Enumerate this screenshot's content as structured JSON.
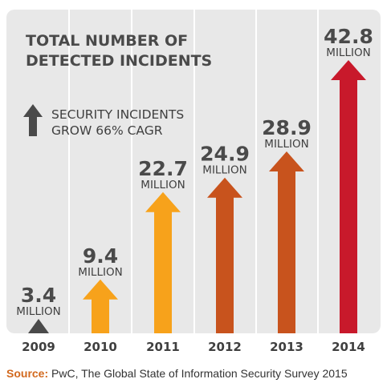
{
  "chart_data": {
    "type": "bar",
    "title_lines": [
      "TOTAL NUMBER OF",
      "DETECTED INCIDENTS"
    ],
    "annotation_lines": [
      "SECURITY INCIDENTS",
      "GROW 66% CAGR"
    ],
    "categories": [
      "2009",
      "2010",
      "2011",
      "2012",
      "2013",
      "2014"
    ],
    "values": [
      3.4,
      9.4,
      22.7,
      24.9,
      28.9,
      42.8
    ],
    "value_labels": [
      "3.4",
      "9.4",
      "22.7",
      "24.9",
      "28.9",
      "42.8"
    ],
    "unit": "MILLION",
    "colors": [
      "#4a4a4a",
      "#f7a21b",
      "#f7a21b",
      "#c8531d",
      "#c8531d",
      "#c8192b"
    ],
    "annotation_icon": "up-arrow-icon",
    "xlabel": "",
    "ylabel": ""
  },
  "source": {
    "label": "Source:",
    "text": " PwC, The Global State of Information Security Survey 2015"
  }
}
